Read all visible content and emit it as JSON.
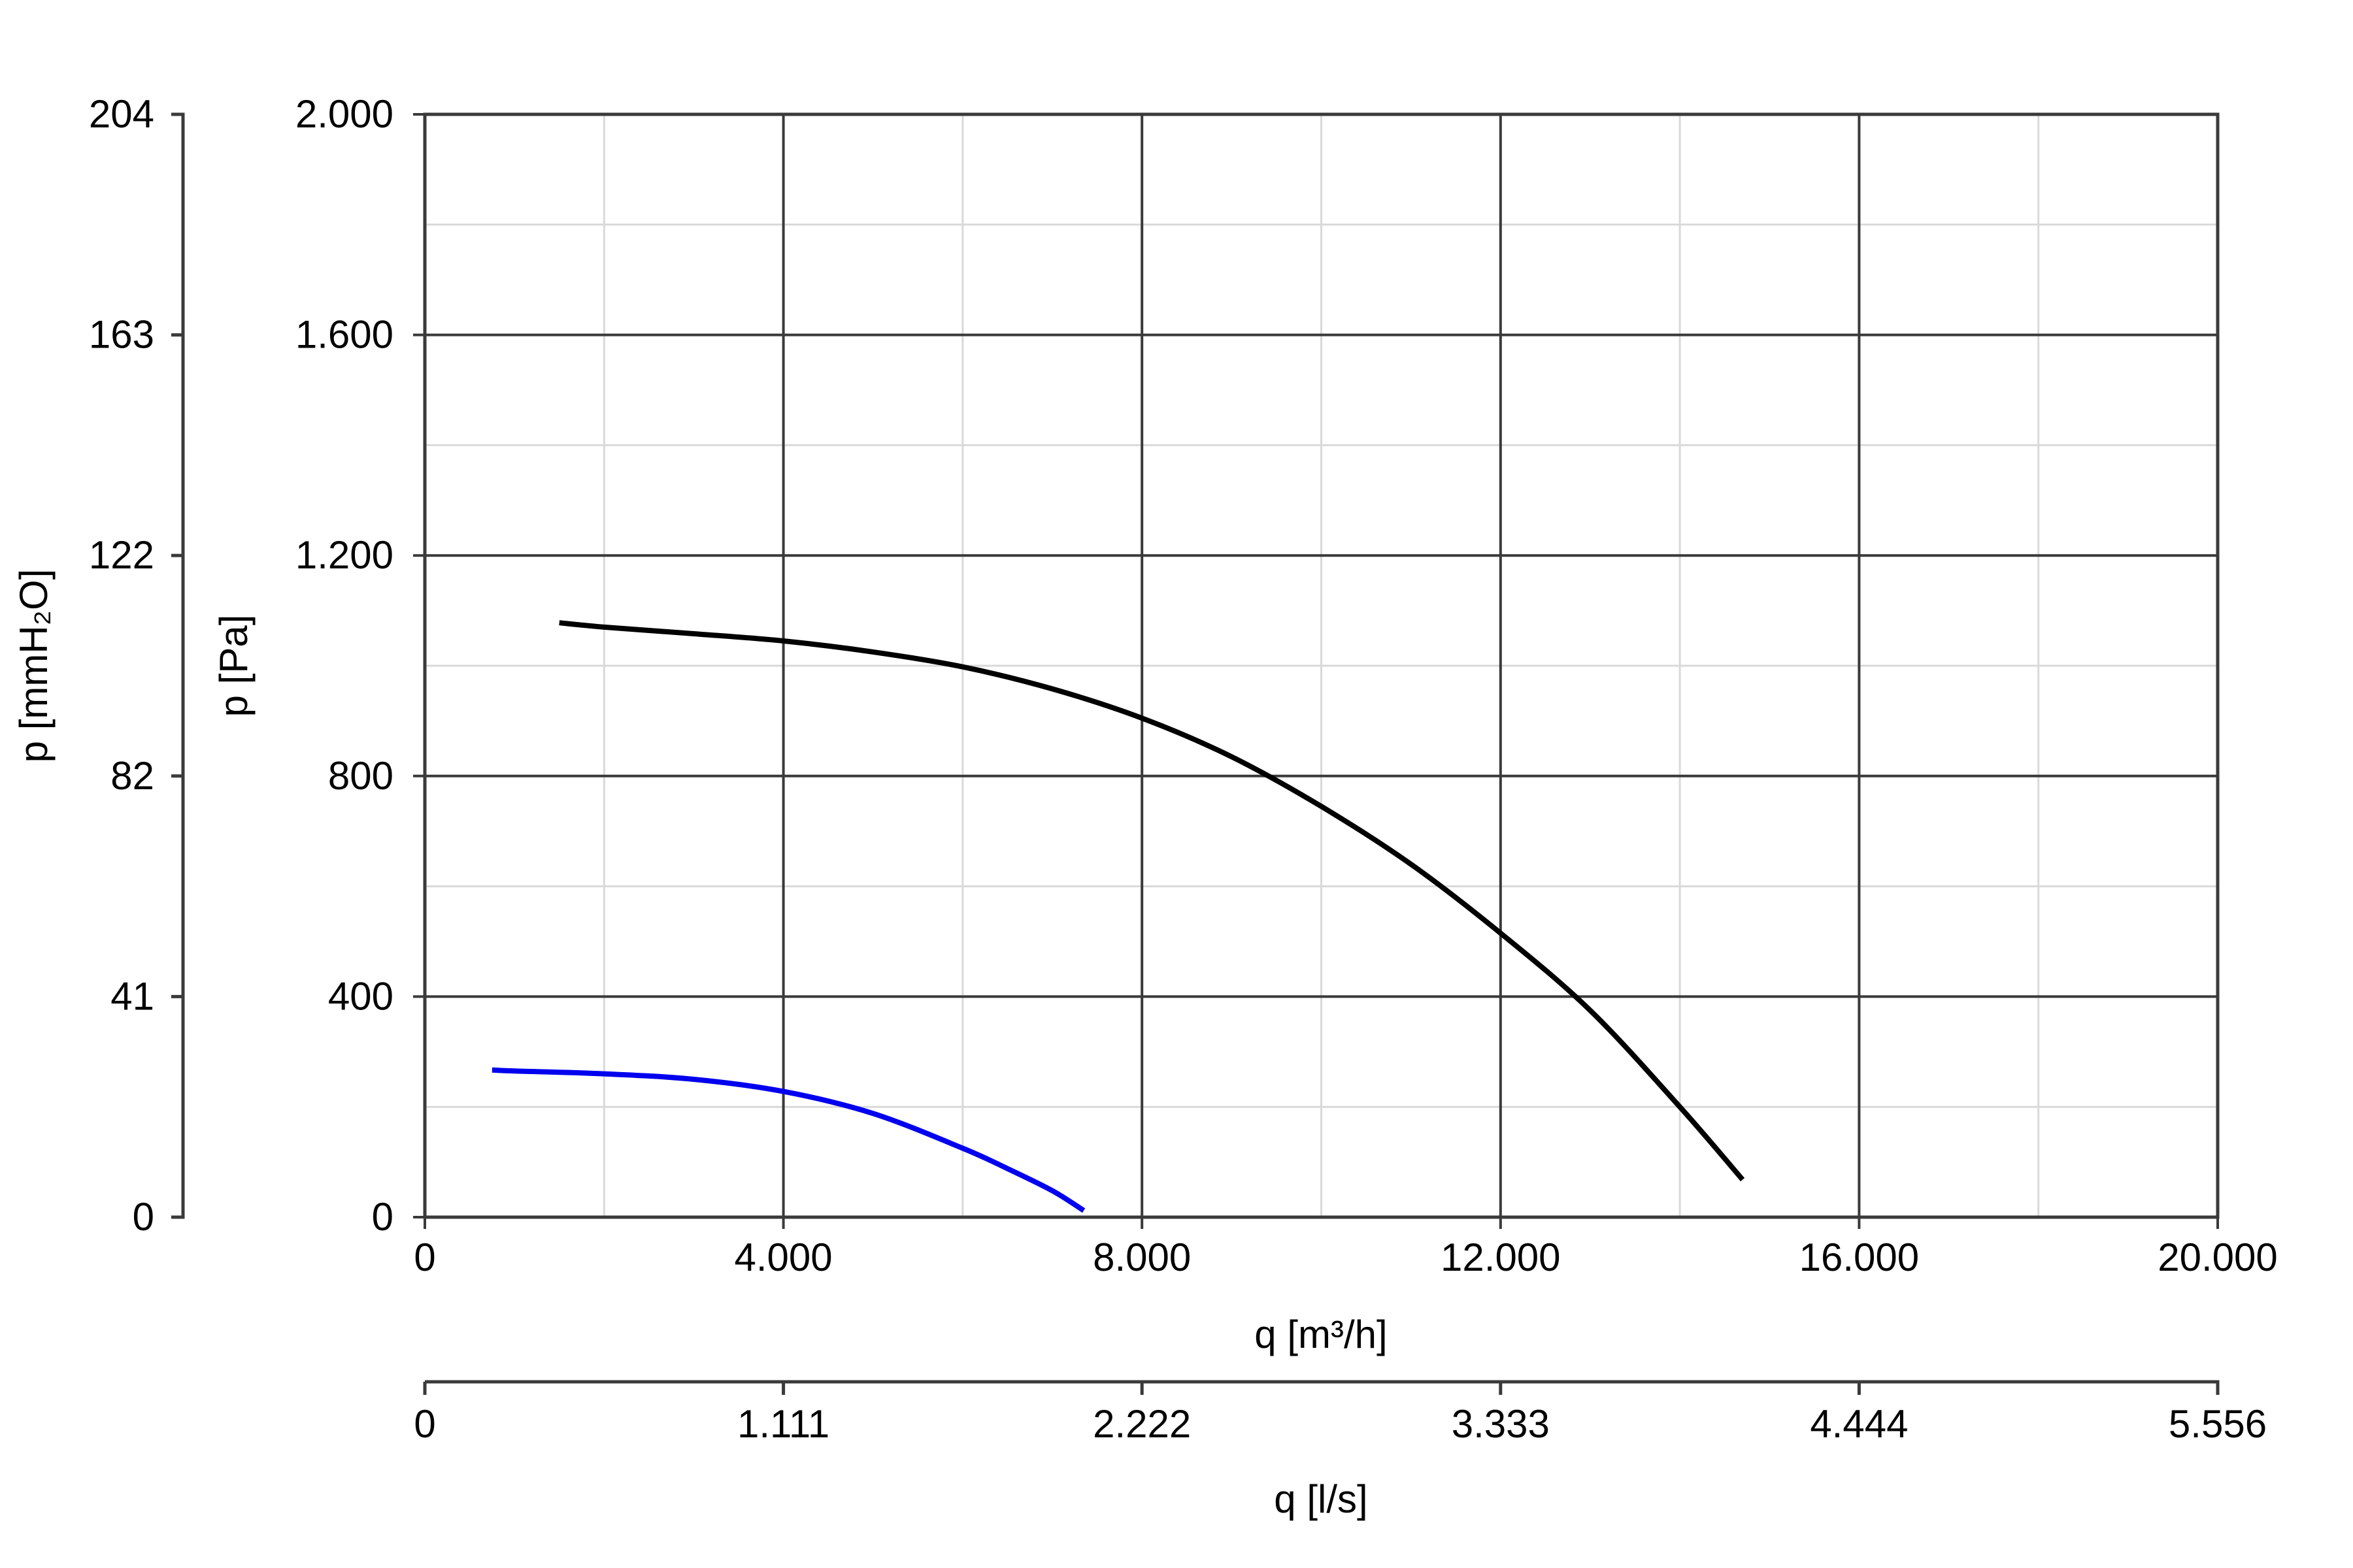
{
  "chart_data": {
    "type": "line",
    "title": "",
    "xlabel": "q [m³/h]",
    "ylabel": "p [Pa]",
    "xlim": [
      0,
      20000
    ],
    "ylim": [
      0,
      2000
    ],
    "x_ticks": [
      0,
      4000,
      8000,
      12000,
      16000,
      20000
    ],
    "x_tick_labels": [
      "0",
      "4.000",
      "8.000",
      "12.000",
      "16.000",
      "20.000"
    ],
    "y_ticks": [
      0,
      400,
      800,
      1200,
      1600,
      2000
    ],
    "y_tick_labels": [
      "0",
      "400",
      "800",
      "1.200",
      "1.600",
      "2.000"
    ],
    "grid": true,
    "secondary_x_axis": {
      "label": "q [l/s]",
      "ticks": [
        "0",
        "1.111",
        "2.222",
        "3.333",
        "4.444",
        "5.556"
      ]
    },
    "secondary_y_axis": {
      "label": "p [mmH₂O]",
      "ticks": [
        "0",
        "41",
        "82",
        "122",
        "163",
        "204"
      ]
    },
    "series": [
      {
        "color": "#000000",
        "x": [
          1500,
          2000,
          3000,
          4000,
          5000,
          6000,
          7000,
          8000,
          9000,
          10000,
          11000,
          12000,
          13000,
          14000,
          14700
        ],
        "y": [
          1078,
          1070,
          1058,
          1045,
          1025,
          998,
          958,
          905,
          835,
          745,
          640,
          515,
          375,
          200,
          68
        ]
      },
      {
        "color": "#0000ee",
        "x": [
          750,
          1000,
          2000,
          3000,
          4000,
          5000,
          6000,
          6500,
          7000,
          7350
        ],
        "y": [
          267,
          265,
          260,
          250,
          228,
          188,
          125,
          88,
          48,
          12
        ]
      }
    ]
  }
}
